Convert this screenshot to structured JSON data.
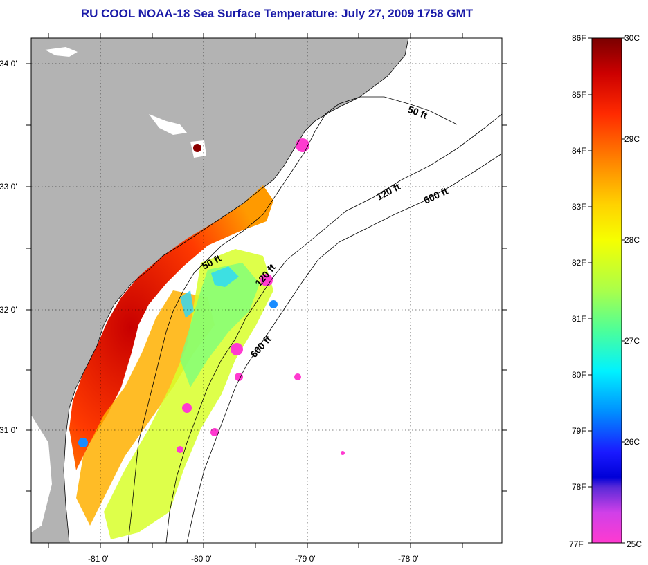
{
  "title": "RU COOL  NOAA-18  Sea Surface Temperature:  July 27, 2009 1758 GMT",
  "map": {
    "lat_labels": [
      "34 0'",
      "33 0'",
      "32 0'",
      "31 0'"
    ],
    "lon_labels": [
      "-81 0'",
      "-80 0'",
      "-79 0'",
      "-78 0'"
    ],
    "contour_labels": [
      "50 ft",
      "120 ft",
      "600 ft",
      "50 ft",
      "120 ft",
      "600 ft"
    ],
    "colors": {
      "land": "#b3b3b3",
      "ocean_missing": "#ffffff"
    }
  },
  "colorbar": {
    "f_labels": [
      "86F",
      "85F",
      "84F",
      "83F",
      "82F",
      "81F",
      "80F",
      "79F",
      "78F",
      "77F"
    ],
    "c_labels": [
      "30C",
      "29C",
      "28C",
      "27C",
      "26C",
      "25C"
    ]
  }
}
